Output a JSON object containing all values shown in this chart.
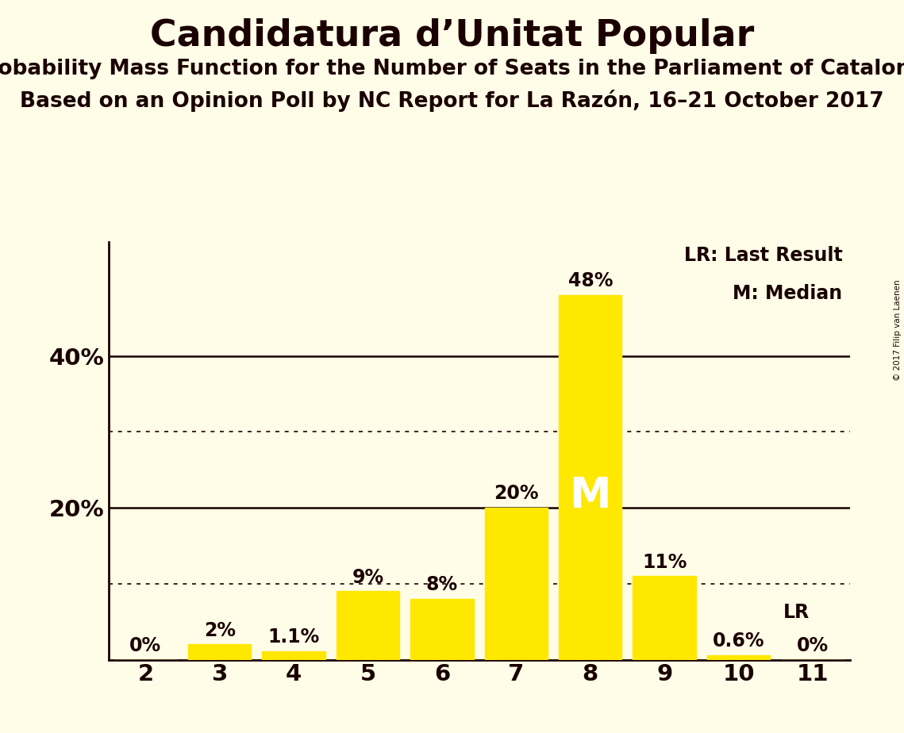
{
  "title": "Candidatura d’Unitat Popular",
  "subtitle1": "Probability Mass Function for the Number of Seats in the Parliament of Catalonia",
  "subtitle2": "Based on an Opinion Poll by NC Report for La Razón, 16–21 October 2017",
  "copyright": "© 2017 Filip van Laenen",
  "seats": [
    2,
    3,
    4,
    5,
    6,
    7,
    8,
    9,
    10,
    11
  ],
  "values": [
    0.0,
    2.0,
    1.1,
    9.0,
    8.0,
    20.0,
    48.0,
    11.0,
    0.6,
    0.0
  ],
  "bar_color": "#FFE800",
  "median_seat": 8,
  "lr_seat": 10,
  "background_color": "#FFFDE8",
  "text_color": "#1A0000",
  "solid_gridlines": [
    20.0,
    40.0
  ],
  "dotted_gridlines": [
    10.0,
    30.0
  ],
  "ylim": [
    0,
    55
  ],
  "yticks": [
    20,
    40
  ],
  "legend_lr": "LR: Last Result",
  "legend_m": "M: Median",
  "bar_label_fontsize": 17,
  "title_fontsize": 33,
  "subtitle_fontsize": 19,
  "tick_fontsize": 21
}
